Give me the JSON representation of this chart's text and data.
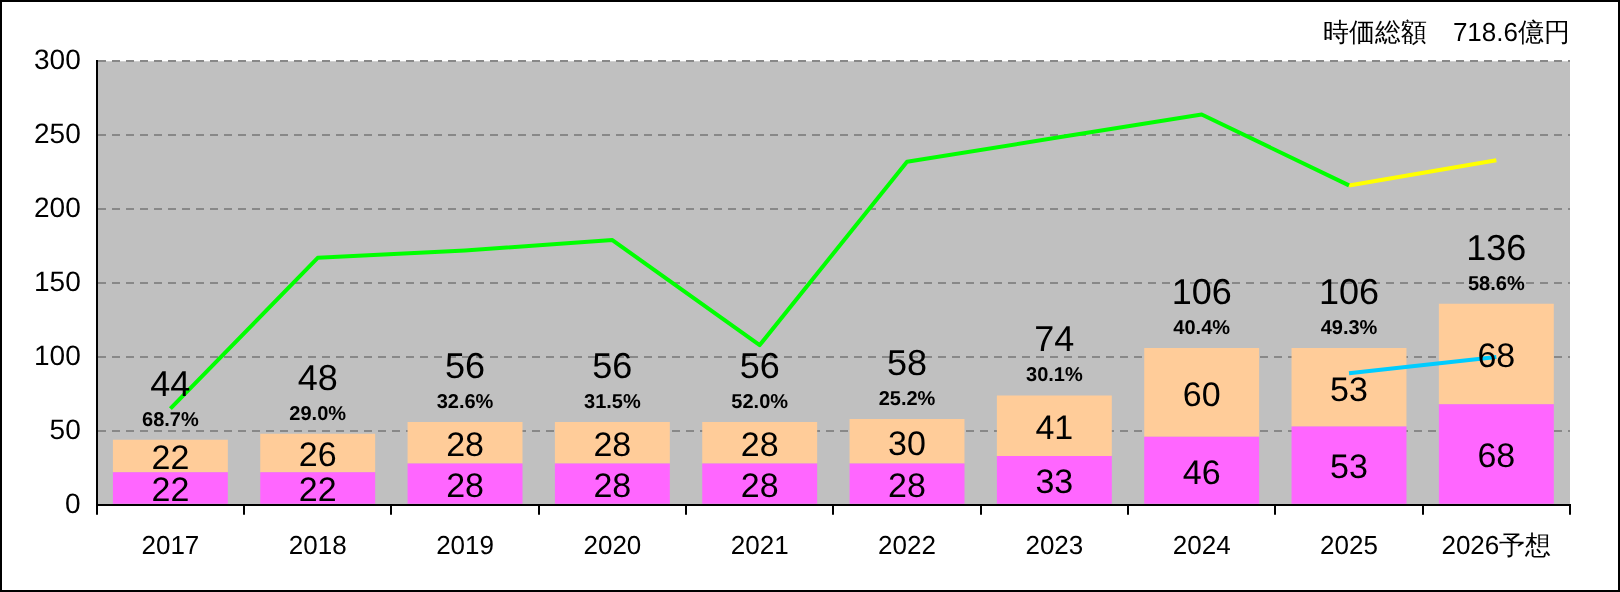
{
  "chart_data": {
    "type": "bar",
    "title": "時価総額　718.6億円",
    "categories": [
      "2017",
      "2018",
      "2019",
      "2020",
      "2021",
      "2022",
      "2023",
      "2024",
      "2025",
      "2026予想"
    ],
    "stacked": true,
    "grid": "y",
    "legend": false,
    "ylim": [
      0,
      300
    ],
    "yticks": [
      0,
      50,
      100,
      150,
      200,
      250,
      300
    ],
    "series": [
      {
        "color": "#ff66ff",
        "values": [
          22,
          22,
          28,
          28,
          28,
          28,
          33,
          46,
          53,
          68
        ],
        "value_labels": [
          "22",
          "22",
          "28",
          "28",
          "28",
          "28",
          "33",
          "46",
          "53",
          "68"
        ]
      },
      {
        "color": "#ffcc99",
        "values": [
          22,
          26,
          28,
          28,
          28,
          30,
          41,
          60,
          53,
          68
        ],
        "value_labels": [
          "22",
          "26",
          "28",
          "28",
          "28",
          "30",
          "41",
          "60",
          "53",
          "68"
        ]
      },
      {
        "type": "line",
        "color": "#00ff00",
        "values": [
          65,
          167,
          172,
          179,
          108,
          232,
          248,
          264,
          216,
          null
        ]
      },
      {
        "type": "line",
        "color": "#ffff00",
        "values": [
          null,
          null,
          null,
          null,
          null,
          null,
          null,
          null,
          216,
          233
        ]
      },
      {
        "type": "line",
        "color": "#00ccff",
        "values": [
          null,
          null,
          null,
          null,
          null,
          null,
          null,
          null,
          89,
          100
        ]
      }
    ],
    "totals": [
      "44",
      "48",
      "56",
      "56",
      "56",
      "58",
      "74",
      "106",
      "106",
      "136"
    ],
    "annotations": [
      {
        "text": "68.7%",
        "x": "2017",
        "y": 44
      },
      {
        "text": "29.0%",
        "x": "2018",
        "y": 48
      },
      {
        "text": "32.6%",
        "x": "2019",
        "y": 56
      },
      {
        "text": "31.5%",
        "x": "2020",
        "y": 56
      },
      {
        "text": "52.0%",
        "x": "2021",
        "y": 56
      },
      {
        "text": "25.2%",
        "x": "2022",
        "y": 58
      },
      {
        "text": "30.1%",
        "x": "2023",
        "y": 74
      },
      {
        "text": "40.4%",
        "x": "2024",
        "y": 106
      },
      {
        "text": "49.3%",
        "x": "2025",
        "y": 106
      },
      {
        "text": "58.6%",
        "x": "2026予想",
        "y": 136
      }
    ]
  }
}
